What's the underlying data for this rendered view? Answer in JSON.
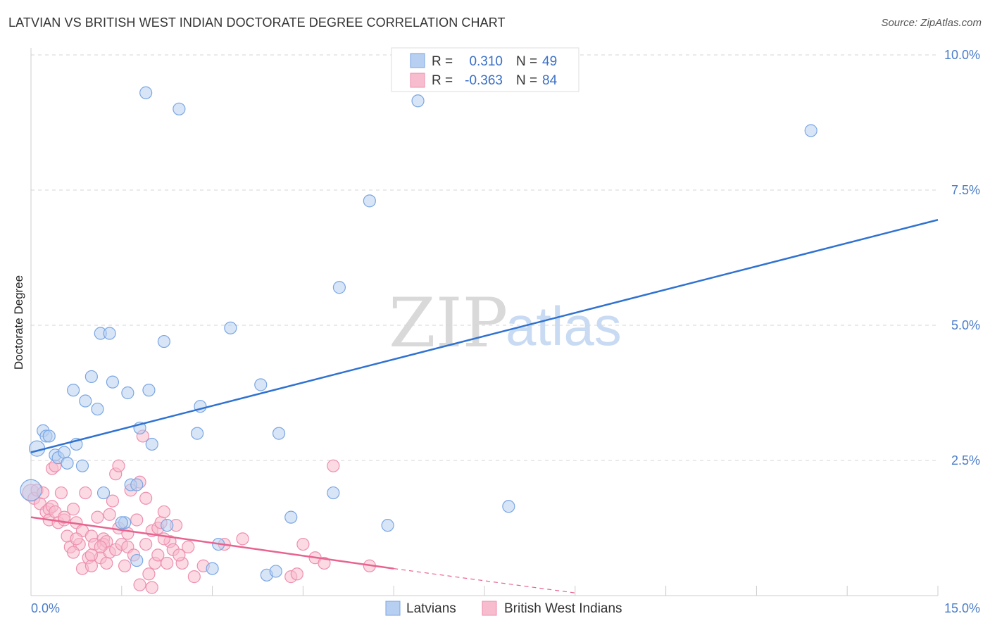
{
  "header": {
    "title": "LATVIAN VS BRITISH WEST INDIAN DOCTORATE DEGREE CORRELATION CHART",
    "source": "Source: ZipAtlas.com"
  },
  "watermark": {
    "zip": "ZIP",
    "atlas": "atlas"
  },
  "colors": {
    "blue_fill": "#b7cff0",
    "blue_stroke": "#7aa6e3",
    "blue_line": "#2f72d0",
    "pink_fill": "#f7bccd",
    "pink_stroke": "#ee8fae",
    "pink_line": "#e8638f",
    "grid": "#d5d5d5",
    "axis_label": "#4a7cc9"
  },
  "legend": {
    "rows": [
      {
        "r_label": "R =",
        "r_value": "0.310",
        "n_label": "N =",
        "n_value": "49"
      },
      {
        "r_label": "R =",
        "r_value": "-0.363",
        "n_label": "N =",
        "n_value": "84"
      }
    ]
  },
  "bottom_legend": {
    "series1": "Latvians",
    "series2": "British West Indians"
  },
  "chart_data": {
    "type": "scatter",
    "title": "LATVIAN VS BRITISH WEST INDIAN DOCTORATE DEGREE CORRELATION CHART",
    "xlabel": "",
    "ylabel": "Doctorate Degree",
    "xlim": [
      0,
      15
    ],
    "ylim": [
      0,
      10
    ],
    "x_tick_labels": [
      "0.0%",
      "15.0%"
    ],
    "y_ticks": [
      2.5,
      5.0,
      7.5,
      10.0
    ],
    "y_tick_labels": [
      "2.5%",
      "5.0%",
      "7.5%",
      "10.0%"
    ],
    "grid": true,
    "legend_position": "top-center",
    "series": [
      {
        "name": "Latvians",
        "r": 0.31,
        "n": 49,
        "trend": {
          "x0": 0,
          "y0": 2.65,
          "x1": 15,
          "y1": 6.95,
          "dashed_to": null
        },
        "points": [
          [
            0.0,
            1.95
          ],
          [
            0.1,
            2.72
          ],
          [
            0.2,
            3.05
          ],
          [
            0.25,
            2.95
          ],
          [
            0.3,
            2.95
          ],
          [
            0.4,
            2.6
          ],
          [
            0.45,
            2.55
          ],
          [
            0.55,
            2.65
          ],
          [
            0.6,
            2.45
          ],
          [
            0.7,
            3.8
          ],
          [
            0.75,
            2.8
          ],
          [
            0.85,
            2.4
          ],
          [
            0.9,
            3.6
          ],
          [
            1.0,
            4.05
          ],
          [
            1.1,
            3.45
          ],
          [
            1.15,
            4.85
          ],
          [
            1.3,
            4.85
          ],
          [
            1.2,
            1.9
          ],
          [
            1.35,
            3.95
          ],
          [
            1.6,
            3.75
          ],
          [
            1.55,
            1.35
          ],
          [
            1.65,
            2.05
          ],
          [
            1.75,
            2.05
          ],
          [
            1.8,
            3.1
          ],
          [
            1.95,
            3.8
          ],
          [
            2.0,
            2.8
          ],
          [
            2.2,
            4.7
          ],
          [
            2.25,
            1.3
          ],
          [
            2.8,
            3.5
          ],
          [
            2.75,
            3.0
          ],
          [
            3.1,
            0.95
          ],
          [
            3.3,
            4.95
          ],
          [
            3.0,
            0.5
          ],
          [
            3.8,
            3.9
          ],
          [
            3.9,
            0.38
          ],
          [
            4.1,
            3.0
          ],
          [
            4.3,
            1.45
          ],
          [
            4.05,
            0.45
          ],
          [
            5.0,
            1.9
          ],
          [
            5.1,
            5.7
          ],
          [
            5.6,
            7.3
          ],
          [
            5.9,
            1.3
          ],
          [
            6.4,
            9.15
          ],
          [
            7.9,
            1.65
          ],
          [
            12.9,
            8.6
          ],
          [
            1.75,
            0.65
          ],
          [
            2.45,
            9.0
          ],
          [
            1.9,
            9.3
          ],
          [
            1.5,
            1.35
          ]
        ]
      },
      {
        "name": "British West Indians",
        "r": -0.363,
        "n": 84,
        "trend": {
          "x0": 0,
          "y0": 1.45,
          "x1": 6.0,
          "y1": 0.5,
          "dashed_to": {
            "x": 9.0,
            "y": 0.05
          }
        },
        "points": [
          [
            0.0,
            1.9
          ],
          [
            0.05,
            1.8
          ],
          [
            0.1,
            1.95
          ],
          [
            0.15,
            1.7
          ],
          [
            0.2,
            1.9
          ],
          [
            0.25,
            1.55
          ],
          [
            0.3,
            1.6
          ],
          [
            0.3,
            1.4
          ],
          [
            0.35,
            1.65
          ],
          [
            0.4,
            1.55
          ],
          [
            0.45,
            1.35
          ],
          [
            0.35,
            2.35
          ],
          [
            0.4,
            2.4
          ],
          [
            0.5,
            1.9
          ],
          [
            0.55,
            1.4
          ],
          [
            0.6,
            1.1
          ],
          [
            0.7,
            1.6
          ],
          [
            0.65,
            0.9
          ],
          [
            0.75,
            1.35
          ],
          [
            0.8,
            0.95
          ],
          [
            0.85,
            1.2
          ],
          [
            0.7,
            0.8
          ],
          [
            0.9,
            1.9
          ],
          [
            0.95,
            0.7
          ],
          [
            1.0,
            1.1
          ],
          [
            0.85,
            0.5
          ],
          [
            1.0,
            0.55
          ],
          [
            1.1,
            1.45
          ],
          [
            1.05,
            0.95
          ],
          [
            1.15,
            0.7
          ],
          [
            1.2,
            1.05
          ],
          [
            1.2,
            0.95
          ],
          [
            1.3,
            1.5
          ],
          [
            1.25,
            1.0
          ],
          [
            1.3,
            0.8
          ],
          [
            1.4,
            0.85
          ],
          [
            1.45,
            1.25
          ],
          [
            1.5,
            0.95
          ],
          [
            1.35,
            1.75
          ],
          [
            1.4,
            2.25
          ],
          [
            1.45,
            2.4
          ],
          [
            1.6,
            0.9
          ],
          [
            1.6,
            1.15
          ],
          [
            1.7,
            0.75
          ],
          [
            1.65,
            1.95
          ],
          [
            1.8,
            2.1
          ],
          [
            1.9,
            1.8
          ],
          [
            1.85,
            2.95
          ],
          [
            1.95,
            0.4
          ],
          [
            2.0,
            1.2
          ],
          [
            2.05,
            0.6
          ],
          [
            2.1,
            1.25
          ],
          [
            2.1,
            0.75
          ],
          [
            2.15,
            1.35
          ],
          [
            2.2,
            1.55
          ],
          [
            2.25,
            0.6
          ],
          [
            2.3,
            1.0
          ],
          [
            2.35,
            0.85
          ],
          [
            2.4,
            1.3
          ],
          [
            2.5,
            0.6
          ],
          [
            2.6,
            0.9
          ],
          [
            2.7,
            0.35
          ],
          [
            2.85,
            0.55
          ],
          [
            3.2,
            0.95
          ],
          [
            3.5,
            1.05
          ],
          [
            4.3,
            0.35
          ],
          [
            4.4,
            0.4
          ],
          [
            4.5,
            0.95
          ],
          [
            4.7,
            0.7
          ],
          [
            4.85,
            0.6
          ],
          [
            5.0,
            2.4
          ],
          [
            5.6,
            0.55
          ],
          [
            1.8,
            0.2
          ],
          [
            2.0,
            0.15
          ],
          [
            0.55,
            1.45
          ],
          [
            0.75,
            1.05
          ],
          [
            1.0,
            0.75
          ],
          [
            1.15,
            0.9
          ],
          [
            1.25,
            0.6
          ],
          [
            1.55,
            0.55
          ],
          [
            1.75,
            1.4
          ],
          [
            1.9,
            0.95
          ],
          [
            2.2,
            1.05
          ],
          [
            2.45,
            0.75
          ]
        ]
      }
    ]
  }
}
